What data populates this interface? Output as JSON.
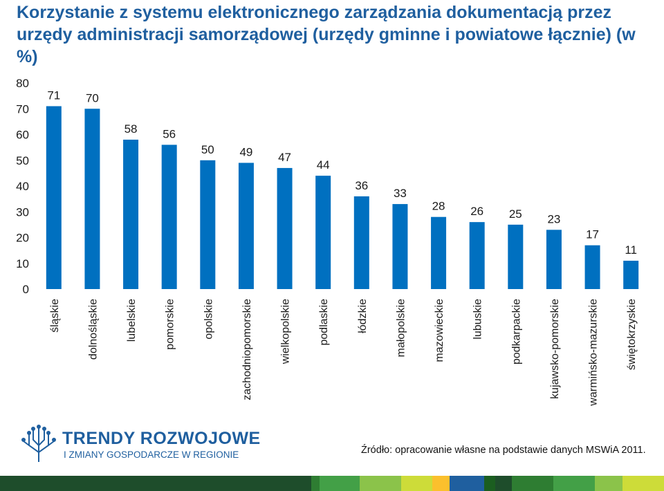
{
  "title": "Korzystanie z systemu elektronicznego zarządzania dokumentacją przez urzędy administracji samorządowej (urzędy gminne i powiatowe łącznie) (w %)",
  "chart_data": {
    "type": "bar",
    "title": "Korzystanie z systemu elektronicznego zarządzania dokumentacją przez urzędy administracji samorządowej (urzędy gminne i powiatowe łącznie) (w %)",
    "xlabel": "",
    "ylabel": "",
    "ylim": [
      0,
      80
    ],
    "yticks": [
      0,
      10,
      20,
      30,
      40,
      50,
      60,
      70,
      80
    ],
    "grid": false,
    "categories": [
      "śląskie",
      "dolnośląskie",
      "lubelskie",
      "pomorskie",
      "opolskie",
      "zachodniopomorskie",
      "wielkopolskie",
      "podlaskie",
      "łódzkie",
      "małopolskie",
      "mazowieckie",
      "lubuskie",
      "podkarpackie",
      "kujawsko-pomorskie",
      "warmińsko-mazurskie",
      "świętokrzyskie"
    ],
    "values": [
      71,
      70,
      58,
      56,
      50,
      49,
      47,
      44,
      36,
      33,
      28,
      26,
      25,
      23,
      17,
      11
    ],
    "bar_color": "#0070c0"
  },
  "logo": {
    "name": "TRENDY ROZWOJOWE",
    "subtitle": "I ZMIANY GOSPODARCZE W REGIONIE",
    "color": "#1f5f9f"
  },
  "source": "Źródło: opracowanie własne na podstawie danych MSWiA 2011.",
  "footer_colors": [
    "#1e4d2b",
    "#2e7d32",
    "#43a047",
    "#8bc34a",
    "#cddc39",
    "#fbc02d",
    "#1f5f9f",
    "#1b5e20"
  ]
}
